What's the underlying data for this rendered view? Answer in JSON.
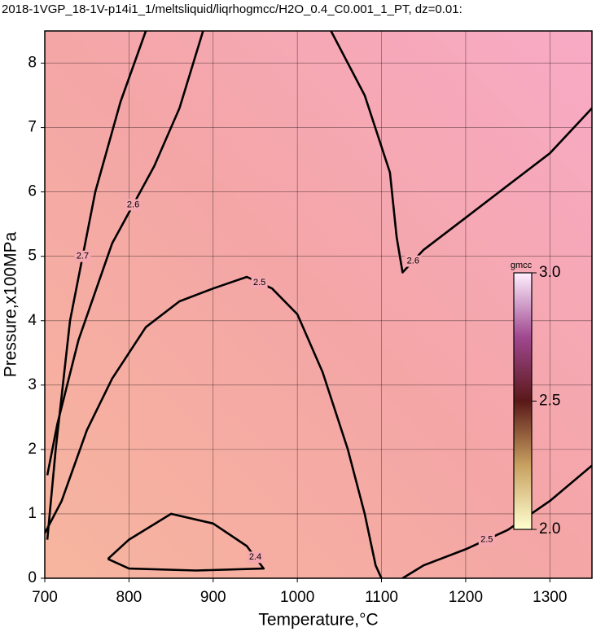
{
  "chart_data": {
    "type": "contour",
    "title": "2018-1VGP_18-1V-p14i1_1/meltsliquid/liqrhogmcc/H2O_0.4_C0.001_1_PT, dz=0.01:",
    "x_label": "Temperature,°C",
    "y_label": "Pressure,x100MPa",
    "xlim": [
      700,
      1350
    ],
    "ylim": [
      0,
      8.5
    ],
    "xticks": [
      700,
      800,
      900,
      1000,
      1100,
      1200,
      1300
    ],
    "yticks": [
      0,
      1,
      2,
      3,
      4,
      5,
      6,
      7,
      8
    ],
    "grid": true,
    "colorbar": {
      "label": "gmcc",
      "clim": [
        2,
        3
      ],
      "ticks": [
        {
          "value": 2,
          "label": "2.0"
        },
        2.5,
        {
          "value": 3,
          "label": "3.0"
        }
      ]
    },
    "contours": [
      {
        "level": "2.7",
        "x": [
          703,
          713,
          730,
          760,
          790,
          820
        ],
        "y": [
          0.6,
          2.0,
          4.0,
          6.0,
          7.4,
          8.5
        ]
      },
      {
        "level": "2.6",
        "x": [
          703,
          715,
          740,
          780,
          830,
          860,
          888
        ],
        "y": [
          1.6,
          2.4,
          3.7,
          5.2,
          6.4,
          7.3,
          8.5
        ]
      },
      {
        "level": "2.5",
        "x": [
          700,
          720,
          750,
          780,
          820,
          860,
          900,
          940,
          970,
          1000,
          1030,
          1060,
          1080,
          1093,
          1100
        ],
        "y": [
          0.7,
          1.2,
          2.3,
          3.1,
          3.9,
          4.3,
          4.5,
          4.68,
          4.5,
          4.1,
          3.2,
          2.0,
          1.0,
          0.2,
          0
        ]
      },
      {
        "level": "2.4",
        "x": [
          775,
          800,
          850,
          900,
          940,
          960,
          880,
          800,
          775
        ],
        "y": [
          0.3,
          0.6,
          1.0,
          0.85,
          0.5,
          0.15,
          0.12,
          0.15,
          0.3
        ]
      },
      {
        "level": "2.6",
        "x": [
          1040,
          1080,
          1110,
          1118,
          1125,
          1150,
          1200,
          1250,
          1300,
          1350
        ],
        "y": [
          8.5,
          7.5,
          6.3,
          5.3,
          4.75,
          5.1,
          5.6,
          6.1,
          6.6,
          7.3
        ]
      },
      {
        "level": "2.5",
        "x": [
          1125,
          1150,
          1200,
          1250,
          1300,
          1350
        ],
        "y": [
          0,
          0.2,
          0.45,
          0.75,
          1.2,
          1.75
        ]
      }
    ]
  }
}
